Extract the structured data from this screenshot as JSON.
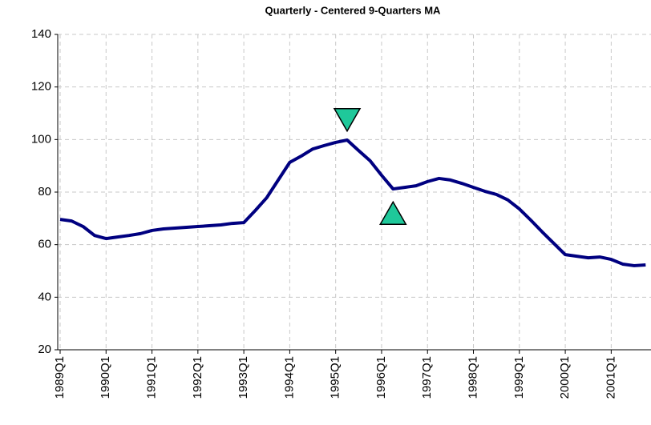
{
  "chart_data": {
    "type": "line",
    "title": "Quarterly - Centered 9-Quarters MA",
    "categories": [
      "1989Q1",
      null,
      null,
      null,
      "1990Q1",
      null,
      null,
      null,
      "1991Q1",
      null,
      null,
      null,
      "1992Q1",
      null,
      null,
      null,
      "1993Q1",
      null,
      null,
      null,
      "1994Q1",
      null,
      null,
      null,
      "1995Q1",
      null,
      null,
      null,
      "1996Q1",
      null,
      null,
      null,
      "1997Q1",
      null,
      null,
      null,
      "1998Q1",
      null,
      null,
      null,
      "1999Q1",
      null,
      null,
      null,
      "2000Q1",
      null,
      null,
      null,
      "2001Q1",
      null,
      null,
      null
    ],
    "series": [
      {
        "color": "#000080",
        "values": [
          69.6,
          69,
          66.9,
          63.5,
          62.3,
          62.9,
          63.5,
          64.2,
          65.4,
          66,
          66.3,
          66.6,
          66.9,
          67.2,
          67.5,
          68.1,
          68.4,
          73,
          77.9,
          84.6,
          91.3,
          93.7,
          96.4,
          97.7,
          98.9,
          99.8,
          95.8,
          91.9,
          86.4,
          81.2,
          81.8,
          82.4,
          84,
          85.2,
          84.6,
          83.3,
          81.8,
          80.3,
          79.1,
          77,
          73.6,
          69.3,
          64.8,
          60.5,
          56.2,
          55.6,
          55,
          55.3,
          54.4,
          52.6,
          52,
          52.3
        ]
      }
    ],
    "markers": [
      {
        "shape": "down",
        "index": 25,
        "y": 107.5,
        "color": "#1fc89a"
      },
      {
        "shape": "up",
        "index": 29,
        "y": 72,
        "color": "#1fc89a"
      }
    ],
    "ylim": [
      20,
      140
    ],
    "yticks": [
      20,
      40,
      60,
      80,
      100,
      120,
      140
    ],
    "grid": true
  }
}
